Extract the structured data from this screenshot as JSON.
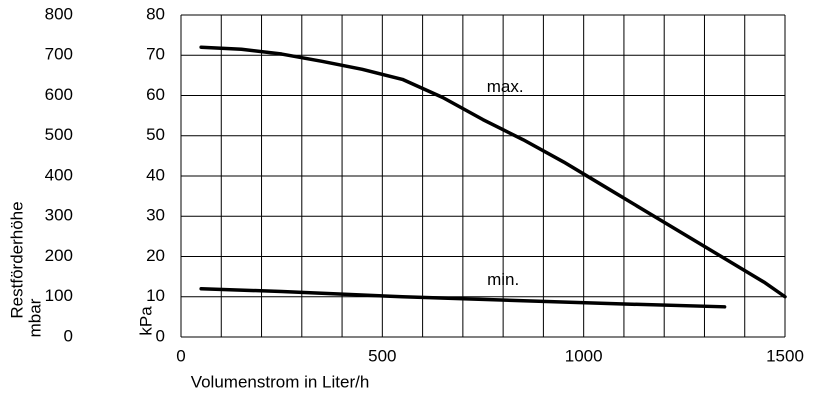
{
  "chart_data": {
    "type": "line",
    "xlabel": "Volumenstrom in Liter/h",
    "ylabel": "kPa",
    "y2label": [
      "Restförderhöhe",
      "mbar"
    ],
    "xlim": [
      0,
      1500
    ],
    "xticks": [
      0,
      500,
      1000,
      1500
    ],
    "xgrid": [
      0,
      100,
      200,
      300,
      400,
      500,
      600,
      700,
      800,
      900,
      1000,
      1100,
      1200,
      1300,
      1400,
      1500
    ],
    "ylim": [
      0,
      80
    ],
    "yticks": [
      0,
      10,
      20,
      30,
      40,
      50,
      60,
      70,
      80
    ],
    "y2lim": [
      0,
      800
    ],
    "y2ticks": [
      0,
      100,
      200,
      300,
      400,
      500,
      600,
      700,
      800
    ],
    "grid": true,
    "series": [
      {
        "name": "max.",
        "color": "#000000",
        "x": [
          50,
          150,
          250,
          350,
          450,
          550,
          650,
          750,
          850,
          950,
          1050,
          1150,
          1250,
          1350,
          1450,
          1500
        ],
        "values": [
          72,
          71.5,
          70.3,
          68.5,
          66.5,
          64,
          59.5,
          54,
          49,
          43.5,
          37.5,
          31.5,
          25.5,
          19.5,
          13.5,
          10
        ]
      },
      {
        "name": "min.",
        "color": "#000000",
        "x": [
          50,
          250,
          550,
          850,
          1100,
          1350
        ],
        "values": [
          12,
          11.3,
          10,
          9,
          8.2,
          7.5
        ]
      }
    ]
  }
}
